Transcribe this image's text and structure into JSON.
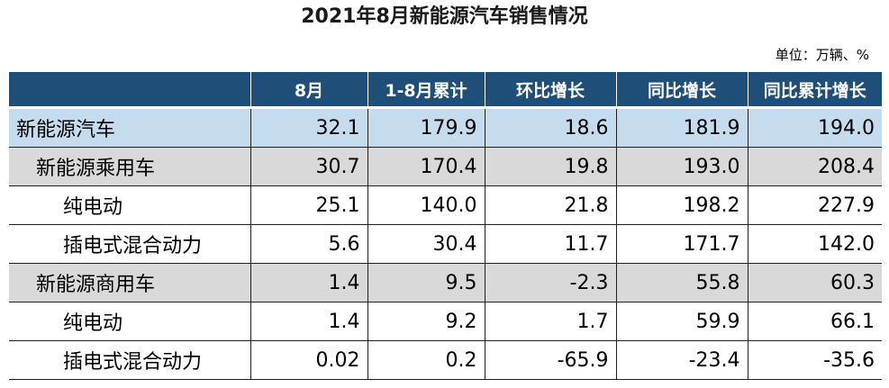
{
  "chart_data": {
    "type": "table",
    "title": "2021年8月新能源汽车销售情况",
    "unit_note": "单位：万辆、%",
    "columns": [
      "",
      "8月",
      "1-8月累计",
      "环比增长",
      "同比增长",
      "同比累计增长"
    ],
    "rows": [
      {
        "label": "新能源汽车",
        "level": 0,
        "values": [
          "32.1",
          "179.9",
          "18.6",
          "181.9",
          "194.0"
        ]
      },
      {
        "label": "新能源乘用车",
        "level": 1,
        "values": [
          "30.7",
          "170.4",
          "19.8",
          "193.0",
          "208.4"
        ]
      },
      {
        "label": "纯电动",
        "level": 2,
        "values": [
          "25.1",
          "140.0",
          "21.8",
          "198.2",
          "227.9"
        ]
      },
      {
        "label": "插电式混合动力",
        "level": 2,
        "values": [
          "5.6",
          "30.4",
          "11.7",
          "171.7",
          "142.0"
        ]
      },
      {
        "label": "新能源商用车",
        "level": 1,
        "values": [
          "1.4",
          "9.5",
          "-2.3",
          "55.8",
          "60.3"
        ]
      },
      {
        "label": "纯电动",
        "level": 2,
        "values": [
          "1.4",
          "9.2",
          "1.7",
          "59.9",
          "66.1"
        ]
      },
      {
        "label": "插电式混合动力",
        "level": 2,
        "values": [
          "0.02",
          "0.2",
          "-65.9",
          "-23.4",
          "-35.6"
        ]
      }
    ],
    "colors": {
      "header_bg": "#1f4e79",
      "level0_bg": "#c5dcef",
      "level1_bg": "#d9d9d9",
      "level2_bg": "#ffffff"
    }
  }
}
